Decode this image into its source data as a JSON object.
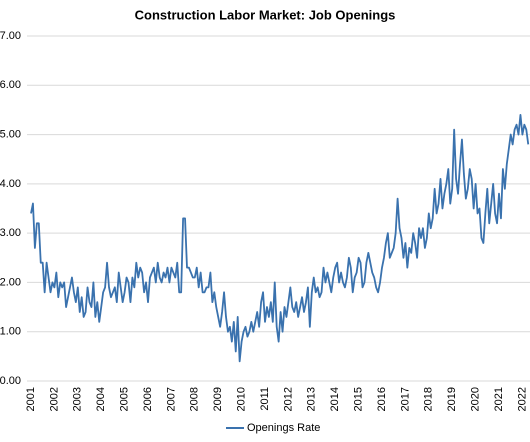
{
  "chart_data": {
    "type": "line",
    "title": "Construction Labor Market: Job Openings",
    "categories": [
      "2001",
      null,
      null,
      null,
      null,
      null,
      null,
      null,
      null,
      null,
      null,
      null,
      "2002",
      null,
      null,
      null,
      null,
      null,
      null,
      null,
      null,
      null,
      null,
      null,
      "2003",
      null,
      null,
      null,
      null,
      null,
      null,
      null,
      null,
      null,
      null,
      null,
      "2004",
      null,
      null,
      null,
      null,
      null,
      null,
      null,
      null,
      null,
      null,
      null,
      "2005",
      null,
      null,
      null,
      null,
      null,
      null,
      null,
      null,
      null,
      null,
      null,
      "2006",
      null,
      null,
      null,
      null,
      null,
      null,
      null,
      null,
      null,
      null,
      null,
      "2007",
      null,
      null,
      null,
      null,
      null,
      null,
      null,
      null,
      null,
      null,
      null,
      "2008",
      null,
      null,
      null,
      null,
      null,
      null,
      null,
      null,
      null,
      null,
      null,
      "2009",
      null,
      null,
      null,
      null,
      null,
      null,
      null,
      null,
      null,
      null,
      null,
      "2010",
      null,
      null,
      null,
      null,
      null,
      null,
      null,
      null,
      null,
      null,
      null,
      "2011",
      null,
      null,
      null,
      null,
      null,
      null,
      null,
      null,
      null,
      null,
      null,
      "2012",
      null,
      null,
      null,
      null,
      null,
      null,
      null,
      null,
      null,
      null,
      null,
      "2013",
      null,
      null,
      null,
      null,
      null,
      null,
      null,
      null,
      null,
      null,
      null,
      "2014",
      null,
      null,
      null,
      null,
      null,
      null,
      null,
      null,
      null,
      null,
      null,
      "2015",
      null,
      null,
      null,
      null,
      null,
      null,
      null,
      null,
      null,
      null,
      null,
      "2016",
      null,
      null,
      null,
      null,
      null,
      null,
      null,
      null,
      null,
      null,
      null,
      "2017",
      null,
      null,
      null,
      null,
      null,
      null,
      null,
      null,
      null,
      null,
      null,
      "2018",
      null,
      null,
      null,
      null,
      null,
      null,
      null,
      null,
      null,
      null,
      null,
      "2019",
      null,
      null,
      null,
      null,
      null,
      null,
      null,
      null,
      null,
      null,
      null,
      "2020",
      null,
      null,
      null,
      null,
      null,
      null,
      null,
      null,
      null,
      null,
      null,
      "2021",
      null,
      null,
      null,
      null,
      null,
      null,
      null,
      null,
      null,
      null,
      null,
      "2022",
      null,
      null,
      null
    ],
    "series": [
      {
        "name": "Openings Rate",
        "color": "#3a72ae",
        "values": [
          3.4,
          3.6,
          2.7,
          3.2,
          3.2,
          2.4,
          2.4,
          1.8,
          2.4,
          2.1,
          1.8,
          2.0,
          1.9,
          2.2,
          1.7,
          2.0,
          1.9,
          2.0,
          1.5,
          1.7,
          1.9,
          2.1,
          1.8,
          1.6,
          1.9,
          1.4,
          1.7,
          1.3,
          1.4,
          1.9,
          1.6,
          1.5,
          2.0,
          1.3,
          1.6,
          1.2,
          1.5,
          1.8,
          1.9,
          2.4,
          1.9,
          1.7,
          1.8,
          1.9,
          1.6,
          2.2,
          1.9,
          1.6,
          1.8,
          2.1,
          2.0,
          1.6,
          2.1,
          1.9,
          2.4,
          2.1,
          2.3,
          2.2,
          1.8,
          2.0,
          1.6,
          2.1,
          2.2,
          2.3,
          2.0,
          2.4,
          2.1,
          2.0,
          2.2,
          2.1,
          2.3,
          2.0,
          2.3,
          2.2,
          2.1,
          2.4,
          1.8,
          1.8,
          3.3,
          3.3,
          2.3,
          2.3,
          2.2,
          2.1,
          2.1,
          2.3,
          1.9,
          2.2,
          1.8,
          1.8,
          1.9,
          1.9,
          2.2,
          1.6,
          1.8,
          1.5,
          1.3,
          1.1,
          1.4,
          1.8,
          1.3,
          1.0,
          1.1,
          0.8,
          1.2,
          0.6,
          1.3,
          0.4,
          0.8,
          1.0,
          1.1,
          0.9,
          1.0,
          1.2,
          1.0,
          1.2,
          1.4,
          1.1,
          1.6,
          1.8,
          1.2,
          1.5,
          1.3,
          1.6,
          1.2,
          2.0,
          1.1,
          0.8,
          1.4,
          1.0,
          1.5,
          1.3,
          1.6,
          1.9,
          1.5,
          1.4,
          1.6,
          1.3,
          1.5,
          1.7,
          1.4,
          1.6,
          1.9,
          1.1,
          1.8,
          2.1,
          1.8,
          1.9,
          1.7,
          1.8,
          2.3,
          2.0,
          2.2,
          2.0,
          1.8,
          2.1,
          2.3,
          2.4,
          2.0,
          2.2,
          2.0,
          1.9,
          2.1,
          2.5,
          2.3,
          1.8,
          2.1,
          2.2,
          2.5,
          2.4,
          1.9,
          2.0,
          2.4,
          2.6,
          2.4,
          2.2,
          2.1,
          1.9,
          1.8,
          2.0,
          2.3,
          2.5,
          2.8,
          3.0,
          2.5,
          2.6,
          2.7,
          3.0,
          3.7,
          3.1,
          2.9,
          2.5,
          2.8,
          2.3,
          2.7,
          2.6,
          3.0,
          2.8,
          2.5,
          3.1,
          2.9,
          3.1,
          2.7,
          2.9,
          3.4,
          3.1,
          3.3,
          3.9,
          3.4,
          3.6,
          4.1,
          3.5,
          3.8,
          4.0,
          4.3,
          3.6,
          3.9,
          5.1,
          4.1,
          3.8,
          4.4,
          4.9,
          4.2,
          3.7,
          3.9,
          4.3,
          4.1,
          3.5,
          4.0,
          3.4,
          3.5,
          2.9,
          2.8,
          3.4,
          3.9,
          3.2,
          3.6,
          4.0,
          3.4,
          3.2,
          3.8,
          3.3,
          4.3,
          3.9,
          4.4,
          4.7,
          5.0,
          4.8,
          5.1,
          5.2,
          5.0,
          5.4,
          5.0,
          5.2,
          5.1,
          4.8
        ]
      }
    ],
    "ylim": [
      0,
      7
    ],
    "yticks": [
      {
        "value": 0,
        "label": "0.00"
      },
      {
        "value": 1,
        "label": "1.00"
      },
      {
        "value": 2,
        "label": "2.00"
      },
      {
        "value": 3,
        "label": "3.00"
      },
      {
        "value": 4,
        "label": "4.00"
      },
      {
        "value": 5,
        "label": "5.00"
      },
      {
        "value": 6,
        "label": "6.00"
      },
      {
        "value": 7,
        "label": "7.00"
      }
    ],
    "grid": true,
    "legend": "bottom"
  }
}
